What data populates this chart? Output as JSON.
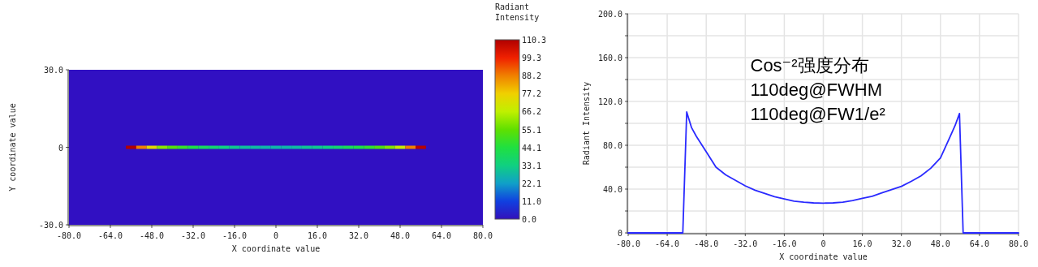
{
  "chart_data": [
    {
      "type": "scatter",
      "xlabel": "X coordinate value",
      "ylabel": "Y coordinate value",
      "clabel": "Radiant Intensity",
      "x": [
        -56,
        -52,
        -48,
        -44,
        -40,
        -36,
        -32,
        -28,
        -24,
        -20,
        -16,
        -12,
        -8,
        -4,
        0,
        4,
        8,
        12,
        16,
        20,
        24,
        28,
        32,
        36,
        40,
        44,
        48,
        52,
        56
      ],
      "values": [
        0,
        0,
        0,
        0,
        0,
        0,
        0,
        0,
        0,
        0,
        0,
        0,
        0,
        0,
        0,
        0,
        0,
        0,
        0,
        0,
        0,
        0,
        0,
        0,
        0,
        0,
        0,
        0,
        0
      ],
      "cvalues": [
        110,
        88,
        74,
        60,
        53,
        48,
        43,
        39,
        36,
        33,
        31,
        29,
        28,
        27,
        27,
        27,
        28,
        30,
        31,
        33,
        36,
        40,
        43,
        47,
        52,
        59,
        68,
        88,
        109
      ],
      "marker": "square",
      "xlim": [
        -80,
        80
      ],
      "ylim": [
        -30,
        30
      ],
      "xticks": [
        {
          "value": -80,
          "label": "-80.0"
        },
        {
          "value": -64,
          "label": "-64.0"
        },
        {
          "value": -48,
          "label": "-48.0"
        },
        {
          "value": -32,
          "label": "-32.0"
        },
        {
          "value": -16,
          "label": "-16.0"
        },
        0,
        {
          "value": 16,
          "label": "16.0"
        },
        {
          "value": 32,
          "label": "32.0"
        },
        {
          "value": 48,
          "label": "48.0"
        },
        {
          "value": 64,
          "label": "64.0"
        },
        {
          "value": 80,
          "label": "80.0"
        }
      ],
      "yticks": [
        {
          "value": -30,
          "label": "-30.0"
        },
        0,
        {
          "value": 30,
          "label": "30.0"
        }
      ],
      "clim": [
        0,
        110.3
      ],
      "cticks": [
        {
          "value": 0,
          "label": "0.0"
        },
        {
          "value": 11,
          "label": "11.0"
        },
        22.1,
        33.1,
        44.1,
        55.1,
        66.2,
        77.2,
        88.2,
        99.3,
        110.3
      ],
      "bands": [
        {
          "axis": "y",
          "from": -30,
          "to": 30,
          "color": "#3110c2"
        }
      ]
    },
    {
      "type": "line",
      "xlabel": "X coordinate value",
      "ylabel": "Radiant Intensity",
      "annotations": [
        "Cos⁻²强度分布",
        "110deg@FWHM",
        "110deg@FW1/e²"
      ],
      "x": [
        -80,
        -57.6,
        -56,
        -54,
        -52,
        -48,
        -44,
        -40,
        -36,
        -32,
        -28,
        -24,
        -20,
        -16,
        -12,
        -8,
        -4,
        0,
        4,
        8,
        12,
        16,
        20,
        24,
        28,
        32,
        36,
        40,
        44,
        48,
        52,
        54,
        55.8,
        57.3,
        80
      ],
      "series": [
        {
          "color": "#2a2aff",
          "values": [
            0,
            0,
            110.4,
            96,
            88,
            74,
            60,
            53,
            48,
            43,
            39,
            36,
            33,
            31,
            29,
            28,
            27.4,
            27.2,
            27.4,
            28,
            29.5,
            31.5,
            33.5,
            36.5,
            39.5,
            42.5,
            47,
            52,
            59,
            68.5,
            88,
            98,
            109,
            0,
            0
          ]
        }
      ],
      "line_style": "solid",
      "xlim": [
        -80,
        80
      ],
      "ylim": [
        0,
        200
      ],
      "xticks": [
        {
          "value": -80,
          "label": "-80.0"
        },
        {
          "value": -64,
          "label": "-64.0"
        },
        {
          "value": -48,
          "label": "-48.0"
        },
        {
          "value": -32,
          "label": "-32.0"
        },
        {
          "value": -16,
          "label": "-16.0"
        },
        0,
        {
          "value": 16,
          "label": "16.0"
        },
        {
          "value": 32,
          "label": "32.0"
        },
        {
          "value": 48,
          "label": "48.0"
        },
        {
          "value": 64,
          "label": "64.0"
        },
        {
          "value": 80,
          "label": "80.0"
        }
      ],
      "yticks": [
        0,
        {
          "value": 20,
          "label": null
        },
        {
          "value": 40,
          "label": "40.0"
        },
        {
          "value": 60,
          "label": null
        },
        {
          "value": 80,
          "label": "80.0"
        },
        {
          "value": 100,
          "label": null
        },
        {
          "value": 120,
          "label": "120.0"
        },
        {
          "value": 140,
          "label": null
        },
        {
          "value": 160,
          "label": "160.0"
        },
        {
          "value": 180,
          "label": null
        },
        {
          "value": 200,
          "label": "200.0"
        }
      ],
      "grid": true
    }
  ]
}
